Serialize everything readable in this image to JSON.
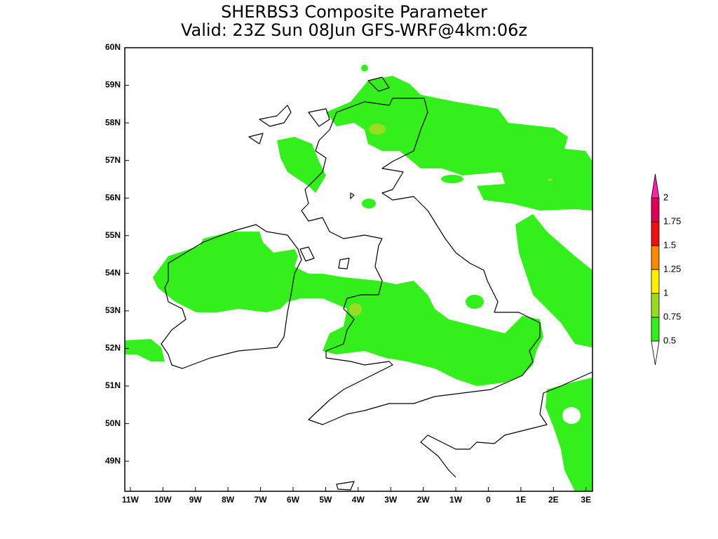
{
  "title": "SHERBS3 Composite Parameter",
  "subtitle": "Valid: 23Z Sun 08Jun GFS-WRF@4km:06z",
  "map": {
    "xlim": [
      -11.17,
      3.2
    ],
    "ylim": [
      48.2,
      60
    ],
    "xticks": [
      {
        "value": -11,
        "label": "11W"
      },
      {
        "value": -10,
        "label": "10W"
      },
      {
        "value": -9,
        "label": "9W"
      },
      {
        "value": -8,
        "label": "8W"
      },
      {
        "value": -7,
        "label": "7W"
      },
      {
        "value": -6,
        "label": "6W"
      },
      {
        "value": -5,
        "label": "5W"
      },
      {
        "value": -4,
        "label": "4W"
      },
      {
        "value": -3,
        "label": "3W"
      },
      {
        "value": -2,
        "label": "2W"
      },
      {
        "value": -1,
        "label": "1W"
      },
      0,
      {
        "value": 1,
        "label": "1E"
      },
      {
        "value": 2,
        "label": "2E"
      },
      {
        "value": 3,
        "label": "3E"
      }
    ],
    "yticks": [
      {
        "value": 49,
        "label": "49N"
      },
      {
        "value": 50,
        "label": "50N"
      },
      {
        "value": 51,
        "label": "51N"
      },
      {
        "value": 52,
        "label": "52N"
      },
      {
        "value": 53,
        "label": "53N"
      },
      {
        "value": 54,
        "label": "54N"
      },
      {
        "value": 55,
        "label": "55N"
      },
      {
        "value": 56,
        "label": "56N"
      },
      {
        "value": 57,
        "label": "57N"
      },
      {
        "value": 58,
        "label": "58N"
      },
      {
        "value": 59,
        "label": "59N"
      },
      {
        "value": 60,
        "label": "60N"
      }
    ]
  },
  "colorbar": {
    "levels": [
      0.5,
      0.75,
      1,
      1.25,
      1.5,
      1.75,
      2
    ],
    "colors": [
      "#33f01c",
      "#99dd22",
      "#ffee00",
      "#ff8800",
      "#ee1111",
      "#dd0055",
      "#ff22aa"
    ],
    "under_color": "#ffffff"
  }
}
